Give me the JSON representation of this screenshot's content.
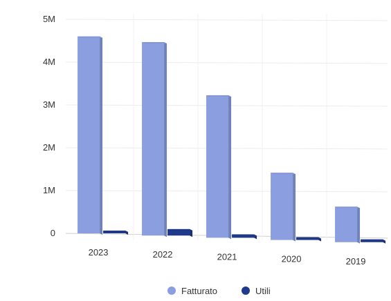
{
  "chart_data": {
    "type": "bar",
    "categories": [
      "2023",
      "2022",
      "2021",
      "2020",
      "2019"
    ],
    "series": [
      {
        "name": "Fatturato",
        "values": [
          4600000,
          4520000,
          3330000,
          1570000,
          830000
        ]
      },
      {
        "name": "Utili",
        "values": [
          60000,
          150000,
          80000,
          60000,
          40000
        ]
      }
    ],
    "yticks": [
      "0",
      "1M",
      "2M",
      "3M",
      "4M",
      "5M"
    ],
    "ylim": [
      0,
      5000000
    ],
    "grid": true,
    "legend_position": "bottom-center",
    "colors": {
      "Fatturato": "#8a9ee0",
      "Utili": "#1f3a8a"
    }
  }
}
